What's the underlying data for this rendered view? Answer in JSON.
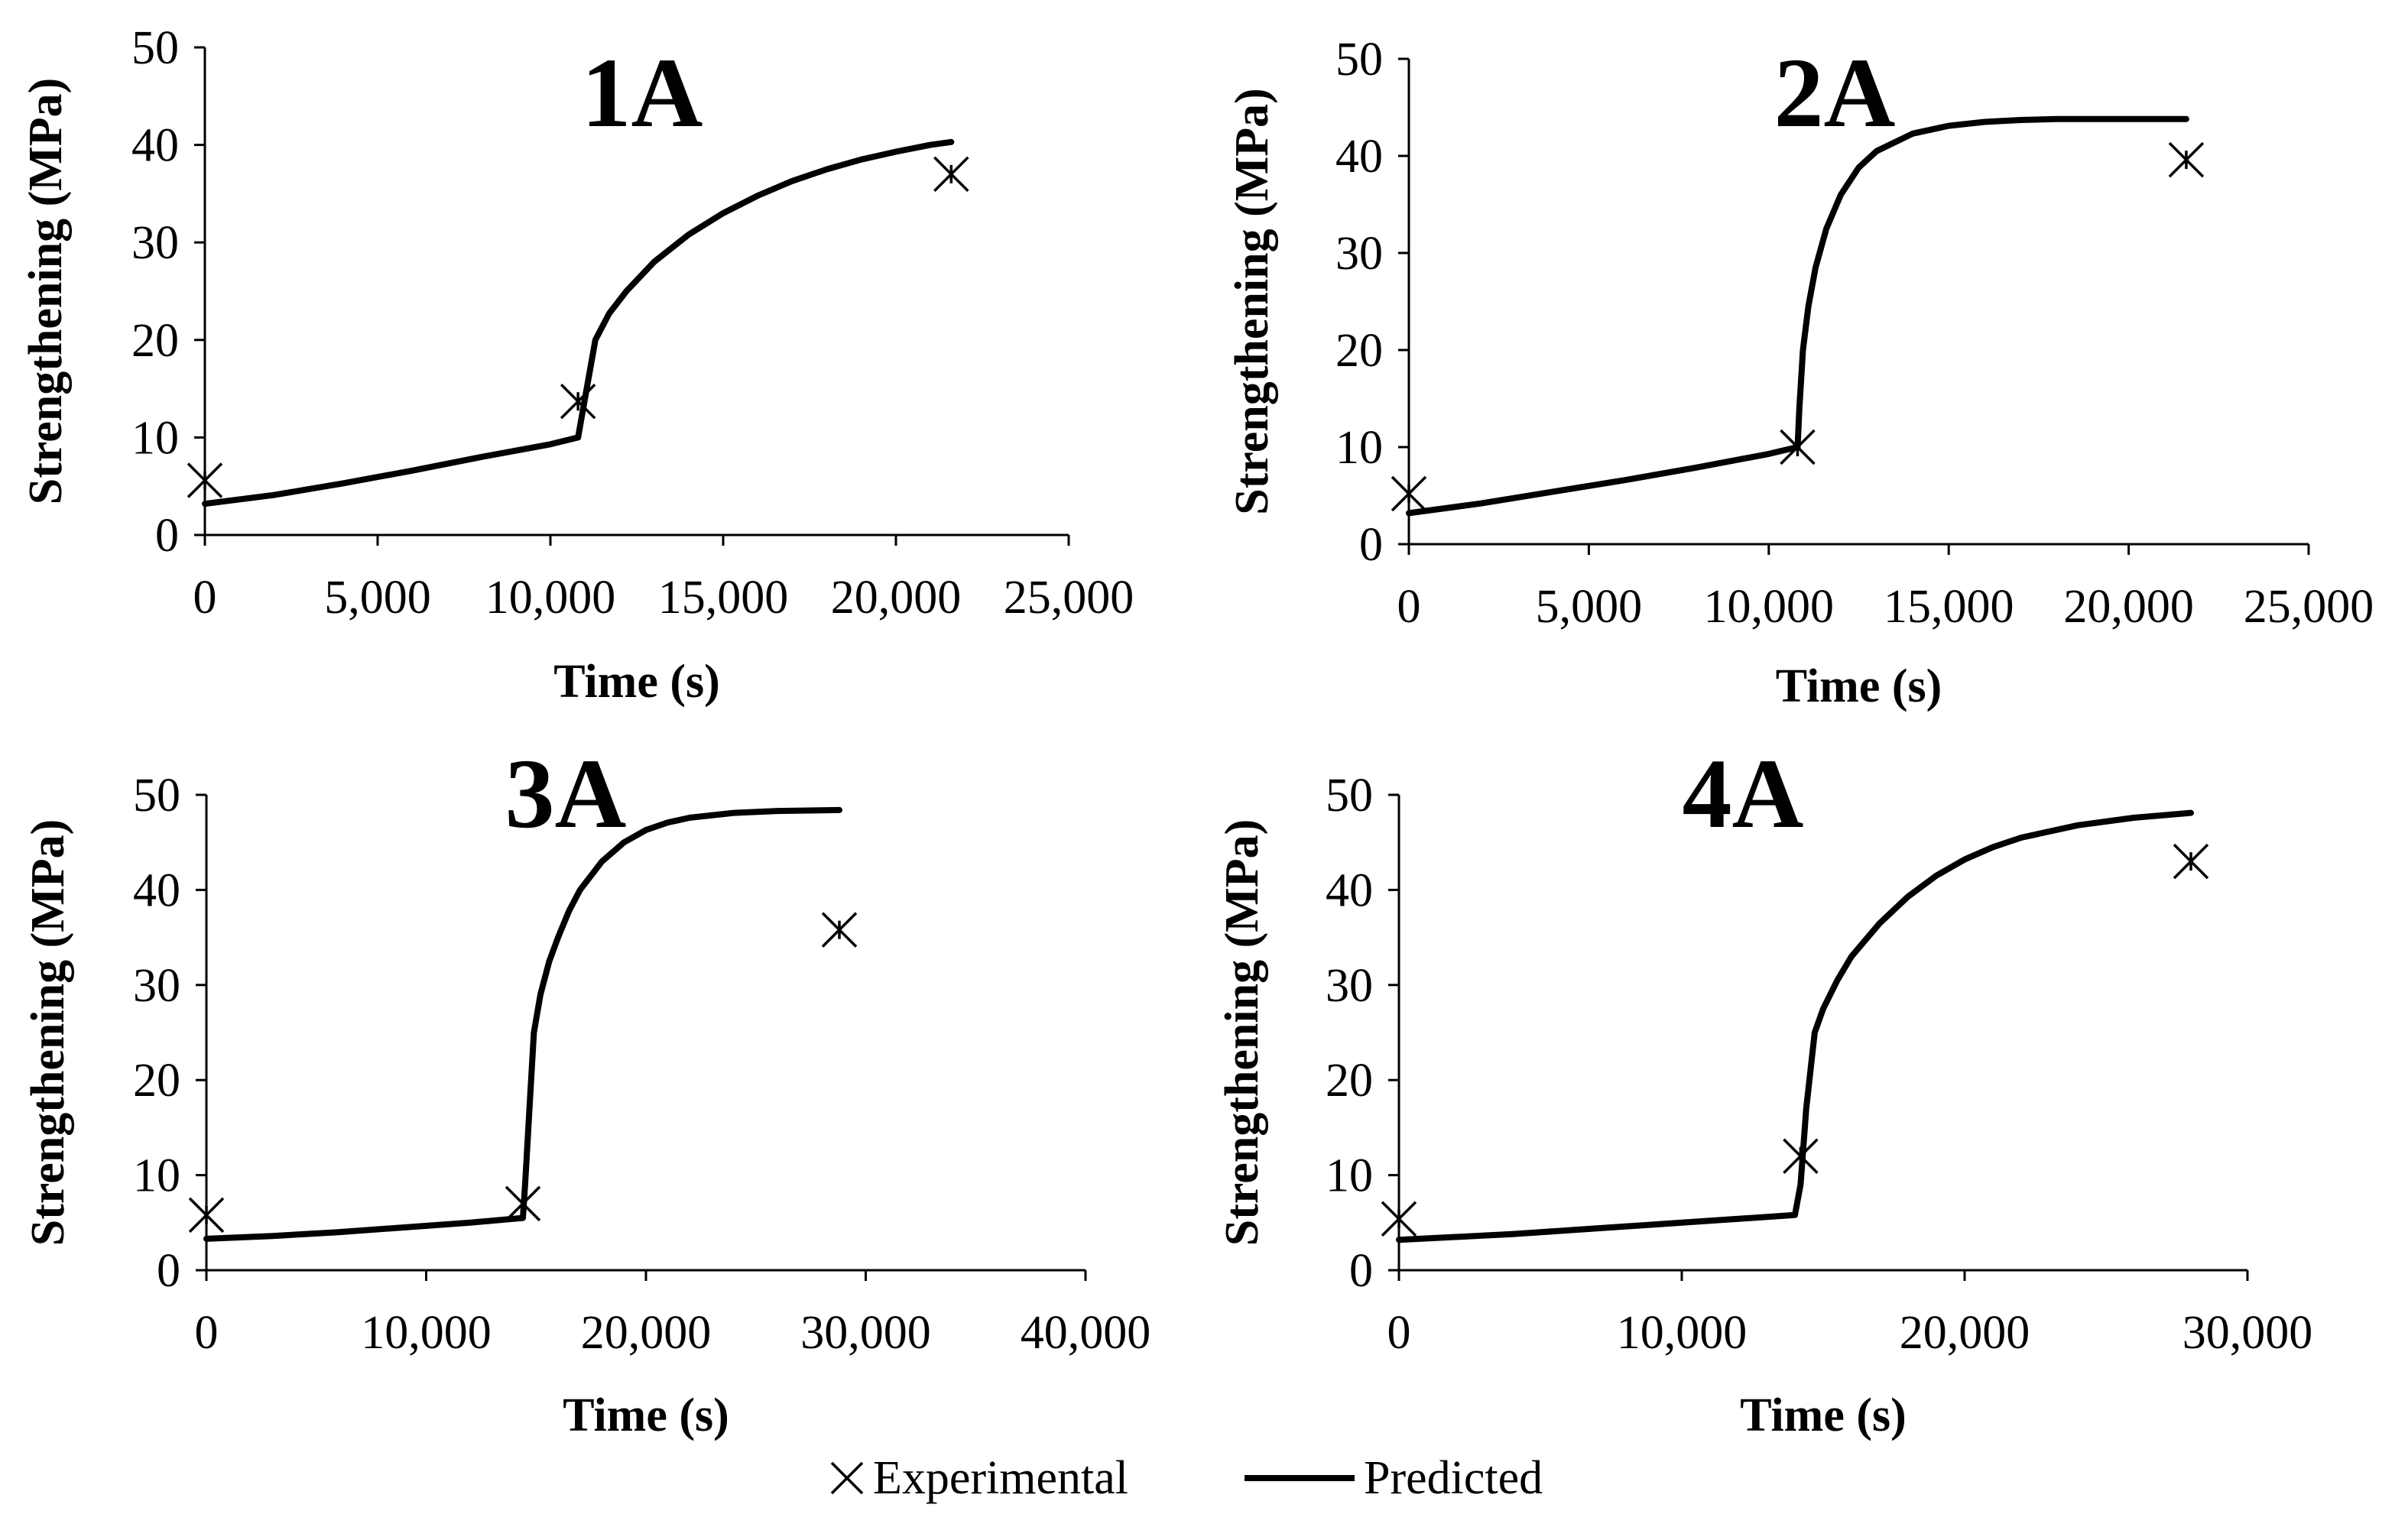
{
  "legend": {
    "experimental_label": "Experimental",
    "predicted_label": "Predicted"
  },
  "chart_data": [
    {
      "type": "line",
      "title": "1A",
      "xlabel": "Time (s)",
      "ylabel": "Strengthening (MPa)",
      "xlim": [
        0,
        25000
      ],
      "ylim": [
        0,
        50
      ],
      "xticks": [
        0,
        5000,
        10000,
        15000,
        20000,
        25000
      ],
      "xtick_labels": [
        "0",
        "5,000",
        "10,000",
        "15,000",
        "20,000",
        "25,000"
      ],
      "yticks": [
        0,
        10,
        20,
        30,
        40,
        50
      ],
      "ytick_labels": [
        "0",
        "10",
        "20",
        "30",
        "40",
        "50"
      ],
      "series": [
        {
          "name": "Predicted",
          "x": [
            0,
            2000,
            4000,
            6000,
            8000,
            10000,
            10800,
            11000,
            11300,
            11700,
            12200,
            13000,
            14000,
            15000,
            16000,
            17000,
            18000,
            19000,
            20000,
            21000,
            21600
          ],
          "y": [
            3.2,
            4.1,
            5.3,
            6.6,
            8.0,
            9.3,
            10.0,
            14.0,
            20.0,
            22.7,
            25.0,
            28.0,
            30.8,
            33.0,
            34.8,
            36.3,
            37.5,
            38.5,
            39.3,
            40.0,
            40.3
          ]
        },
        {
          "name": "Experimental",
          "x": [
            0,
            10800,
            21600
          ],
          "y": [
            5.6,
            13.7,
            37.0
          ]
        }
      ]
    },
    {
      "type": "line",
      "title": "2A",
      "xlabel": "Time (s)",
      "ylabel": "Strengthening (MPa)",
      "xlim": [
        0,
        25000
      ],
      "ylim": [
        0,
        50
      ],
      "xticks": [
        0,
        5000,
        10000,
        15000,
        20000,
        25000
      ],
      "xtick_labels": [
        "0",
        "5,000",
        "10,000",
        "15,000",
        "20,000",
        "25,000"
      ],
      "yticks": [
        0,
        10,
        20,
        30,
        40,
        50
      ],
      "ytick_labels": [
        "0",
        "10",
        "20",
        "30",
        "40",
        "50"
      ],
      "series": [
        {
          "name": "Predicted",
          "x": [
            0,
            2000,
            4000,
            6000,
            8000,
            10000,
            10800,
            10850,
            10950,
            11100,
            11300,
            11600,
            12000,
            12500,
            13000,
            14000,
            15000,
            16000,
            17000,
            18000,
            19000,
            20000,
            21000,
            21600
          ],
          "y": [
            3.2,
            4.2,
            5.4,
            6.6,
            7.9,
            9.3,
            10.0,
            14.0,
            20.0,
            24.5,
            28.5,
            32.5,
            36.0,
            38.8,
            40.5,
            42.3,
            43.1,
            43.5,
            43.7,
            43.8,
            43.8,
            43.8,
            43.8,
            43.8
          ]
        },
        {
          "name": "Experimental",
          "x": [
            0,
            10800,
            21600
          ],
          "y": [
            5.2,
            10.0,
            39.6
          ]
        }
      ]
    },
    {
      "type": "line",
      "title": "3A",
      "xlabel": "Time (s)",
      "ylabel": "Strengthening (MPa)",
      "xlim": [
        0,
        40000
      ],
      "ylim": [
        0,
        50
      ],
      "xticks": [
        0,
        10000,
        20000,
        30000,
        40000
      ],
      "xtick_labels": [
        "0",
        "10,000",
        "20,000",
        "30,000",
        "40,000"
      ],
      "yticks": [
        0,
        10,
        20,
        30,
        40,
        50
      ],
      "ytick_labels": [
        "0",
        "10",
        "20",
        "30",
        "40",
        "50"
      ],
      "series": [
        {
          "name": "Predicted",
          "x": [
            0,
            3000,
            6000,
            9000,
            12000,
            14400,
            14500,
            14700,
            14900,
            15200,
            15600,
            16000,
            16500,
            17000,
            18000,
            19000,
            20000,
            21000,
            22000,
            24000,
            26000,
            28800
          ],
          "y": [
            3.3,
            3.6,
            4.0,
            4.5,
            5.0,
            5.5,
            9.0,
            17.0,
            25.0,
            29.0,
            32.5,
            35.0,
            37.8,
            40.0,
            43.0,
            45.0,
            46.3,
            47.1,
            47.6,
            48.1,
            48.3,
            48.4
          ]
        },
        {
          "name": "Experimental",
          "x": [
            0,
            14400,
            28800
          ],
          "y": [
            5.8,
            7.0,
            35.8
          ]
        }
      ]
    },
    {
      "type": "line",
      "title": "4A",
      "xlabel": "Time (s)",
      "ylabel": "Strengthening (MPa)",
      "xlim": [
        0,
        30000
      ],
      "ylim": [
        0,
        50
      ],
      "xticks": [
        0,
        10000,
        20000,
        30000
      ],
      "xtick_labels": [
        "0",
        "10,000",
        "20,000",
        "30,000"
      ],
      "yticks": [
        0,
        10,
        20,
        30,
        40,
        50
      ],
      "ytick_labels": [
        "0",
        "10",
        "20",
        "30",
        "40",
        "50"
      ],
      "series": [
        {
          "name": "Predicted",
          "x": [
            0,
            2000,
            4000,
            6000,
            8000,
            10000,
            12000,
            14000,
            14200,
            14400,
            14700,
            15000,
            15500,
            16000,
            17000,
            18000,
            19000,
            20000,
            21000,
            22000,
            24000,
            26000,
            28000
          ],
          "y": [
            3.2,
            3.5,
            3.8,
            4.2,
            4.6,
            5.0,
            5.4,
            5.8,
            9.0,
            17.0,
            25.0,
            27.5,
            30.5,
            33.0,
            36.5,
            39.3,
            41.5,
            43.2,
            44.5,
            45.5,
            46.8,
            47.6,
            48.1
          ]
        },
        {
          "name": "Experimental",
          "x": [
            0,
            14200,
            28000
          ],
          "y": [
            5.4,
            12.0,
            43.0
          ]
        }
      ]
    }
  ]
}
